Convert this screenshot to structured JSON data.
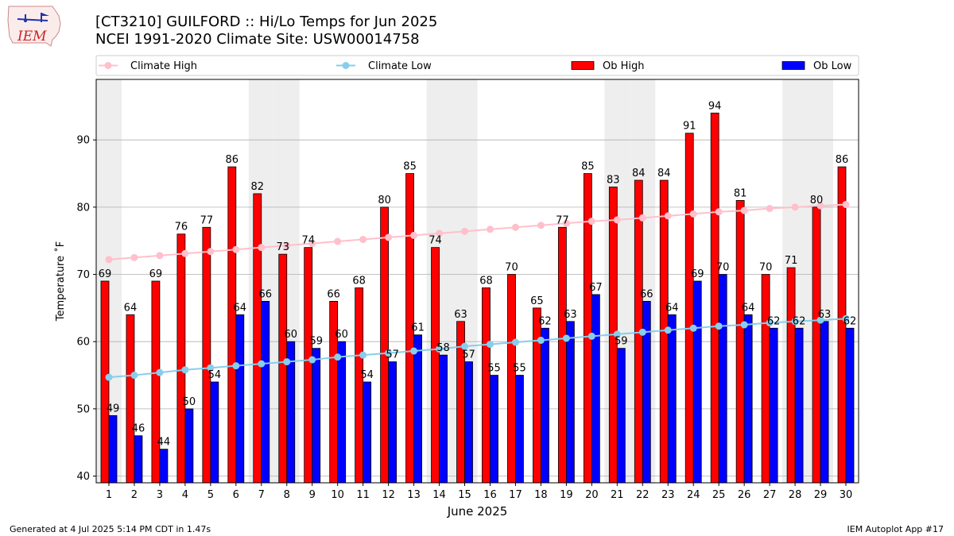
{
  "header": {
    "logo_text": "IEM",
    "title_line1": "[CT3210] GUILFORD :: Hi/Lo Temps for Jun 2025",
    "title_line2": "NCEI 1991-2020 Climate Site: USW00014758"
  },
  "footer": {
    "left": "Generated at 4 Jul 2025 5:14 PM CDT in 1.47s",
    "right": "IEM Autoplot App #17"
  },
  "colors": {
    "ob_high": "#ff0000",
    "ob_low": "#0000ff",
    "climate_high": "#ffc0cb",
    "climate_low": "#87ceeb",
    "weekend_band": "#eeeeee",
    "grid": "#b0b0b0"
  },
  "chart_data": {
    "type": "bar",
    "xlabel": "June 2025",
    "ylabel": "Temperature ˚F",
    "ylim": [
      39,
      99
    ],
    "yticks": [
      40,
      50,
      60,
      70,
      80,
      90
    ],
    "grid": true,
    "legend_placement": "top",
    "legend": [
      "Climate High",
      "Climate Low",
      "Ob High",
      "Ob Low"
    ],
    "shaded_days": [
      1,
      7,
      8,
      14,
      15,
      21,
      22,
      28,
      29
    ],
    "categories": [
      "1",
      "2",
      "3",
      "4",
      "5",
      "6",
      "7",
      "8",
      "9",
      "10",
      "11",
      "12",
      "13",
      "14",
      "15",
      "16",
      "17",
      "18",
      "19",
      "20",
      "21",
      "22",
      "23",
      "24",
      "25",
      "26",
      "27",
      "28",
      "29",
      "30"
    ],
    "series": [
      {
        "name": "Ob High",
        "kind": "bar",
        "values": [
          69,
          64,
          69,
          76,
          77,
          86,
          82,
          73,
          74,
          66,
          68,
          80,
          85,
          74,
          63,
          68,
          70,
          65,
          77,
          85,
          83,
          84,
          84,
          91,
          94,
          81,
          70,
          71,
          80,
          86
        ]
      },
      {
        "name": "Ob Low",
        "kind": "bar",
        "values": [
          49,
          46,
          44,
          50,
          54,
          64,
          66,
          60,
          59,
          60,
          54,
          57,
          61,
          58,
          57,
          55,
          55,
          62,
          63,
          67,
          59,
          66,
          64,
          69,
          70,
          64,
          62,
          62,
          63,
          62
        ]
      },
      {
        "name": "Climate High",
        "kind": "line",
        "values": [
          72.2,
          72.5,
          72.8,
          73.1,
          73.4,
          73.7,
          74.0,
          74.3,
          74.6,
          74.9,
          75.2,
          75.5,
          75.8,
          76.1,
          76.4,
          76.7,
          77.0,
          77.3,
          77.6,
          77.9,
          78.1,
          78.4,
          78.7,
          79.0,
          79.3,
          79.5,
          79.8,
          80.0,
          80.2,
          80.4
        ]
      },
      {
        "name": "Climate Low",
        "kind": "line",
        "values": [
          54.7,
          55.0,
          55.4,
          55.8,
          56.1,
          56.4,
          56.7,
          57.0,
          57.3,
          57.7,
          58.0,
          58.3,
          58.6,
          58.9,
          59.3,
          59.6,
          59.9,
          60.2,
          60.5,
          60.8,
          61.1,
          61.4,
          61.7,
          62.0,
          62.3,
          62.5,
          62.8,
          63.0,
          63.2,
          63.4
        ]
      }
    ]
  }
}
